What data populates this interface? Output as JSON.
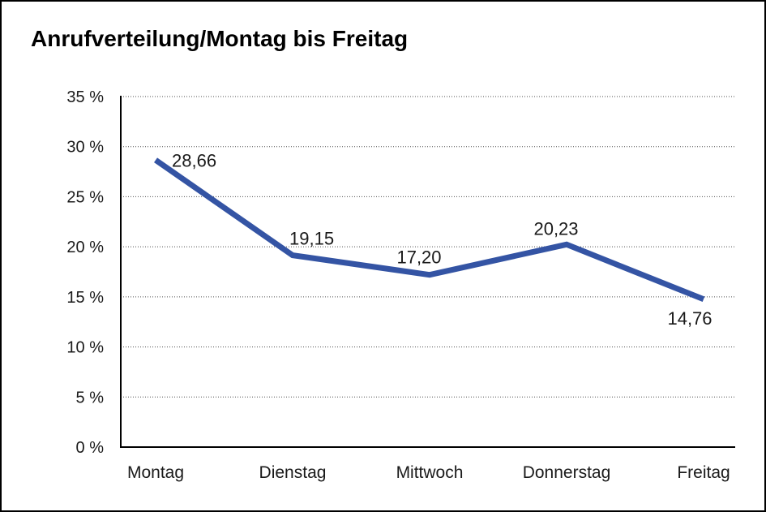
{
  "window": {
    "background": "#ffffff",
    "border_color": "#000000"
  },
  "chart_data": {
    "type": "line",
    "title": "Anrufverteilung/Montag bis Freitag",
    "categories": [
      "Montag",
      "Dienstag",
      "Mittwoch",
      "Donnerstag",
      "Freitag"
    ],
    "values": [
      28.66,
      19.15,
      17.2,
      20.23,
      14.76
    ],
    "data_labels": [
      "28,66",
      "19,15",
      "17,20",
      "20,23",
      "14,76"
    ],
    "y_ticks": {
      "values": [
        0,
        5,
        10,
        15,
        20,
        25,
        30,
        35
      ],
      "labels": [
        "0 %",
        "5 %",
        "10 %",
        "15 %",
        "20 %",
        "25 %",
        "30 %",
        "35 %"
      ]
    },
    "ylim": [
      0,
      35
    ],
    "xlabel": "",
    "ylabel": "",
    "grid": "horizontal-dotted",
    "legend": "none",
    "line_color": "#3454A4",
    "axis_color": "#000000",
    "label_color": "#1a1a1a"
  }
}
